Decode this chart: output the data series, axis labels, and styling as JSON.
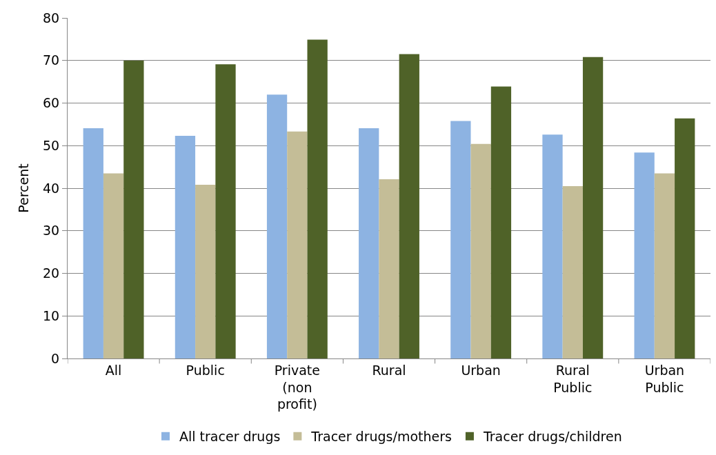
{
  "chart_data": {
    "type": "bar",
    "ylabel": "Percent",
    "categories": [
      "All",
      "Public",
      "Private\n(non\nprofit)",
      "Rural",
      "Urban",
      "Rural\nPublic",
      "Urban\nPublic"
    ],
    "series": [
      {
        "name": "All tracer drugs",
        "color": "#8db3e2",
        "values": [
          54.1,
          52.3,
          62.0,
          54.1,
          55.8,
          52.6,
          48.4
        ]
      },
      {
        "name": "Tracer drugs/mothers",
        "color": "#c4bd97",
        "values": [
          43.5,
          40.8,
          53.3,
          42.1,
          50.4,
          40.5,
          43.5
        ]
      },
      {
        "name": "Tracer drugs/children",
        "color": "#4f6228",
        "values": [
          70.0,
          69.1,
          74.9,
          71.5,
          63.9,
          70.8,
          56.4
        ]
      }
    ],
    "ylim": [
      0,
      80
    ],
    "yticks": [
      0,
      10,
      20,
      30,
      40,
      50,
      60,
      70,
      80
    ],
    "grid": "y",
    "legend": "bottom"
  }
}
